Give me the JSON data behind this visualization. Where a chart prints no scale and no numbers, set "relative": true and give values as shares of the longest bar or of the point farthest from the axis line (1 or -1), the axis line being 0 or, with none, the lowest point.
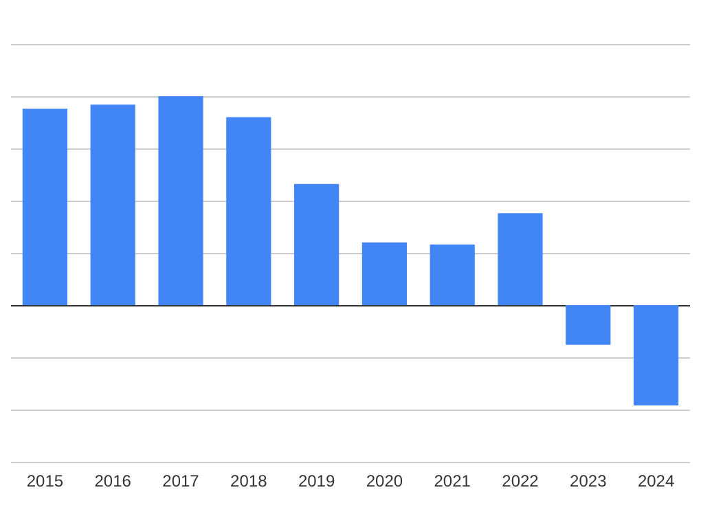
{
  "chart_data": {
    "type": "bar",
    "relative": true,
    "grid": "y",
    "categories": [
      "2015",
      "2016",
      "2017",
      "2018",
      "2019",
      "2020",
      "2021",
      "2022",
      "2023",
      "2024"
    ],
    "values": [
      0.94,
      0.96,
      1,
      0.9,
      0.58,
      0.3,
      0.29,
      0.44,
      -0.19,
      -0.48
    ],
    "color": "#4285f4"
  }
}
